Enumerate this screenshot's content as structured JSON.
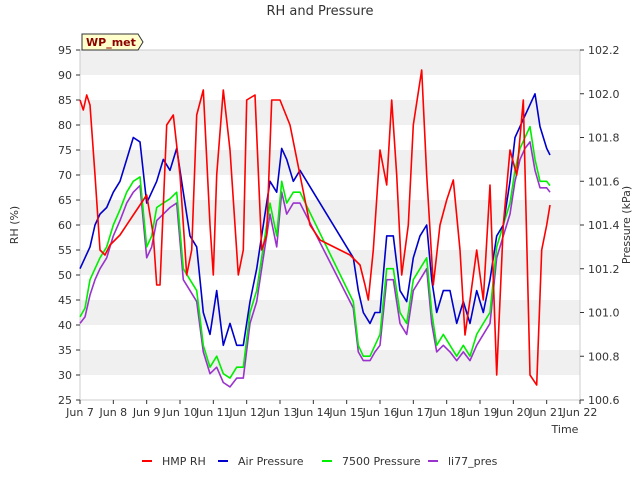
{
  "chart_data": {
    "type": "line",
    "title": "RH and Pressure",
    "xlabel": "Time",
    "ylabel_left": "RH (%)",
    "ylabel_right": "Pressure (kPa)",
    "badge": "WP_met",
    "x_ticks": [
      "Jun 7",
      "Jun 8",
      "Jun 9",
      "Jun 10",
      "Jun 11",
      "Jun 12",
      "Jun 13",
      "Jun 14",
      "Jun 15",
      "Jun 16",
      "Jun 17",
      "Jun 18",
      "Jun 19",
      "Jun 20",
      "Jun 21",
      "Jun 22"
    ],
    "xlim": [
      7,
      22
    ],
    "ylim_left": [
      25,
      95
    ],
    "left_ticks": [
      "25",
      "30",
      "35",
      "40",
      "45",
      "50",
      "55",
      "60",
      "65",
      "70",
      "75",
      "80",
      "85",
      "90",
      "95"
    ],
    "ylim_right": [
      100.6,
      102.2
    ],
    "right_ticks": [
      "100.6",
      "100.8",
      "101.0",
      "101.2",
      "101.4",
      "101.6",
      "101.8",
      "102.0",
      "102.2"
    ],
    "grid": "horizontal bands",
    "legend_position": "bottom",
    "series": [
      {
        "name": "HMP RH",
        "axis": "left",
        "color": "#ff0000",
        "x": [
          7.0,
          7.1,
          7.2,
          7.3,
          7.45,
          7.6,
          7.75,
          7.9,
          8.2,
          8.6,
          9.0,
          9.2,
          9.3,
          9.4,
          9.6,
          9.8,
          10.0,
          10.2,
          10.35,
          10.5,
          10.7,
          10.9,
          11.0,
          11.1,
          11.3,
          11.5,
          11.75,
          11.9,
          12.0,
          12.25,
          12.45,
          12.6,
          12.75,
          13.0,
          13.3,
          13.6,
          13.9,
          14.2,
          14.5,
          14.8,
          15.1,
          15.4,
          15.55,
          15.65,
          15.8,
          16.0,
          16.2,
          16.35,
          16.5,
          16.65,
          16.85,
          17.0,
          17.25,
          17.4,
          17.6,
          17.8,
          18.0,
          18.2,
          18.4,
          18.55,
          18.7,
          18.9,
          19.1,
          19.3,
          19.5,
          19.7,
          19.9,
          20.1,
          20.3,
          20.5,
          20.7,
          20.85,
          21.0,
          21.1
        ],
        "values": [
          85,
          83,
          86,
          84,
          70,
          55,
          54,
          56,
          58,
          62,
          66,
          58,
          48,
          48,
          80,
          82,
          70,
          50,
          55,
          82,
          87,
          60,
          50,
          70,
          87,
          75,
          50,
          55,
          85,
          86,
          55,
          58,
          85,
          85,
          80,
          70,
          60,
          57,
          56,
          55,
          54,
          52,
          48,
          45,
          55,
          75,
          68,
          85,
          70,
          50,
          60,
          80,
          91,
          70,
          48,
          60,
          65,
          69,
          55,
          38,
          45,
          55,
          45,
          68,
          30,
          60,
          75,
          70,
          85,
          30,
          28,
          55,
          60,
          64
        ]
      },
      {
        "name": "Air Pressure",
        "axis": "right",
        "color": "#0000cc",
        "x": [
          7.0,
          7.15,
          7.3,
          7.45,
          7.6,
          7.8,
          8.0,
          8.2,
          8.4,
          8.6,
          8.8,
          9.0,
          9.15,
          9.3,
          9.5,
          9.7,
          9.9,
          10.1,
          10.3,
          10.5,
          10.7,
          10.9,
          11.1,
          11.3,
          11.5,
          11.7,
          11.9,
          12.1,
          12.3,
          12.5,
          12.7,
          12.9,
          13.05,
          13.2,
          13.4,
          13.6,
          15.2,
          15.35,
          15.5,
          15.7,
          15.85,
          16.0,
          16.2,
          16.4,
          16.6,
          16.8,
          17.0,
          17.2,
          17.4,
          17.55,
          17.7,
          17.9,
          18.1,
          18.3,
          18.5,
          18.7,
          18.9,
          19.1,
          19.3,
          19.5,
          19.7,
          19.9,
          20.05,
          20.2,
          20.35,
          20.5,
          20.65,
          20.8,
          21.0,
          21.1
        ],
        "values": [
          101.2,
          101.25,
          101.3,
          101.4,
          101.45,
          101.48,
          101.55,
          101.6,
          101.7,
          101.8,
          101.78,
          101.5,
          101.55,
          101.6,
          101.7,
          101.65,
          101.75,
          101.55,
          101.35,
          101.3,
          101.0,
          100.9,
          101.1,
          100.85,
          100.95,
          100.85,
          100.85,
          101.05,
          101.2,
          101.4,
          101.6,
          101.55,
          101.75,
          101.7,
          101.6,
          101.65,
          101.25,
          101.1,
          101.0,
          100.95,
          101.0,
          101.0,
          101.35,
          101.35,
          101.1,
          101.05,
          101.25,
          101.35,
          101.4,
          101.15,
          101.0,
          101.1,
          101.1,
          100.95,
          101.05,
          100.95,
          101.1,
          101.0,
          101.15,
          101.35,
          101.4,
          101.6,
          101.8,
          101.85,
          101.9,
          101.95,
          102.0,
          101.85,
          101.75,
          101.72
        ]
      },
      {
        "name": "7500 Pressure",
        "axis": "right",
        "color": "#00ee00",
        "x": [
          7.0,
          7.15,
          7.3,
          7.45,
          7.6,
          7.8,
          8.0,
          8.2,
          8.4,
          8.6,
          8.8,
          9.0,
          9.15,
          9.3,
          9.5,
          9.7,
          9.9,
          10.1,
          10.3,
          10.5,
          10.7,
          10.9,
          11.1,
          11.3,
          11.5,
          11.7,
          11.9,
          12.1,
          12.3,
          12.5,
          12.7,
          12.9,
          13.05,
          13.2,
          13.4,
          13.6,
          15.2,
          15.35,
          15.5,
          15.7,
          15.85,
          16.0,
          16.2,
          16.4,
          16.6,
          16.8,
          17.0,
          17.2,
          17.4,
          17.55,
          17.7,
          17.9,
          18.1,
          18.3,
          18.5,
          18.7,
          18.9,
          19.1,
          19.3,
          19.5,
          19.7,
          19.9,
          20.05,
          20.2,
          20.35,
          20.5,
          20.65,
          20.8,
          21.0,
          21.1
        ],
        "values": [
          100.98,
          101.02,
          101.15,
          101.2,
          101.25,
          101.3,
          101.4,
          101.47,
          101.55,
          101.6,
          101.62,
          101.3,
          101.35,
          101.48,
          101.5,
          101.52,
          101.55,
          101.2,
          101.15,
          101.1,
          100.85,
          100.75,
          100.8,
          100.72,
          100.7,
          100.75,
          100.75,
          101.0,
          101.1,
          101.3,
          101.5,
          101.35,
          101.6,
          101.5,
          101.55,
          101.55,
          101.05,
          100.85,
          100.8,
          100.8,
          100.85,
          100.9,
          101.2,
          101.2,
          101.0,
          100.95,
          101.15,
          101.2,
          101.25,
          101.0,
          100.85,
          100.9,
          100.85,
          100.8,
          100.85,
          100.8,
          100.9,
          100.95,
          101.0,
          101.3,
          101.4,
          101.5,
          101.65,
          101.75,
          101.8,
          101.85,
          101.7,
          101.6,
          101.6,
          101.58
        ]
      },
      {
        "name": "li77_pres",
        "axis": "right",
        "color": "#9933cc",
        "x": [
          7.0,
          7.15,
          7.3,
          7.45,
          7.6,
          7.8,
          8.0,
          8.2,
          8.4,
          8.6,
          8.8,
          9.0,
          9.15,
          9.3,
          9.5,
          9.7,
          9.9,
          10.1,
          10.3,
          10.5,
          10.7,
          10.9,
          11.1,
          11.3,
          11.5,
          11.7,
          11.9,
          12.1,
          12.3,
          12.5,
          12.7,
          12.9,
          13.05,
          13.2,
          13.4,
          13.6,
          15.2,
          15.35,
          15.5,
          15.7,
          15.85,
          16.0,
          16.2,
          16.4,
          16.6,
          16.8,
          17.0,
          17.2,
          17.4,
          17.55,
          17.7,
          17.9,
          18.1,
          18.3,
          18.5,
          18.7,
          18.9,
          19.1,
          19.3,
          19.5,
          19.7,
          19.9,
          20.05,
          20.2,
          20.35,
          20.5,
          20.65,
          20.8,
          21.0,
          21.1
        ],
        "values": [
          100.95,
          100.98,
          101.08,
          101.15,
          101.2,
          101.25,
          101.35,
          101.42,
          101.5,
          101.55,
          101.58,
          101.25,
          101.3,
          101.42,
          101.45,
          101.48,
          101.5,
          101.15,
          101.1,
          101.05,
          100.82,
          100.72,
          100.75,
          100.68,
          100.66,
          100.7,
          100.7,
          100.95,
          101.05,
          101.25,
          101.45,
          101.3,
          101.55,
          101.45,
          101.5,
          101.5,
          101.02,
          100.82,
          100.78,
          100.78,
          100.82,
          100.85,
          101.15,
          101.15,
          100.95,
          100.9,
          101.1,
          101.15,
          101.2,
          100.95,
          100.82,
          100.85,
          100.82,
          100.78,
          100.82,
          100.78,
          100.85,
          100.9,
          100.95,
          101.25,
          101.35,
          101.45,
          101.6,
          101.7,
          101.75,
          101.78,
          101.65,
          101.57,
          101.57,
          101.55
        ]
      }
    ]
  }
}
